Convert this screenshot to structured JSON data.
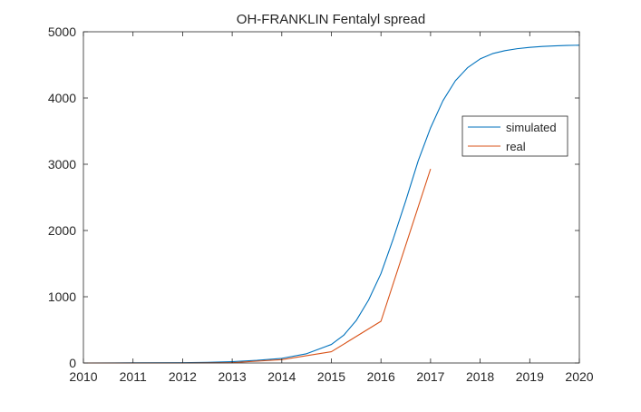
{
  "chart_data": {
    "type": "line",
    "title": "OH-FRANKLIN Fentalyl spread",
    "xlabel": "",
    "ylabel": "",
    "xlim": [
      2010,
      2020
    ],
    "ylim": [
      0,
      5000
    ],
    "xticks": [
      2010,
      2011,
      2012,
      2013,
      2014,
      2015,
      2016,
      2017,
      2018,
      2019,
      2020
    ],
    "yticks": [
      0,
      1000,
      2000,
      3000,
      4000,
      5000
    ],
    "grid": false,
    "legend": {
      "position": "top-right",
      "entries": [
        "simulated",
        "real"
      ]
    },
    "series": [
      {
        "name": "simulated",
        "color": "#0072BD",
        "x": [
          2010,
          2011,
          2012,
          2012.5,
          2013,
          2013.5,
          2014,
          2014.5,
          2015,
          2015.25,
          2015.5,
          2015.75,
          2016,
          2016.25,
          2016.5,
          2016.75,
          2017,
          2017.25,
          2017.5,
          2017.75,
          2018,
          2018.25,
          2018.5,
          2018.75,
          2019,
          2019.25,
          2019.5,
          2019.75,
          2020
        ],
        "y": [
          0,
          2,
          5,
          10,
          20,
          40,
          70,
          140,
          280,
          420,
          640,
          950,
          1350,
          1880,
          2450,
          3050,
          3550,
          3960,
          4260,
          4460,
          4590,
          4670,
          4715,
          4745,
          4765,
          4778,
          4787,
          4793,
          4797
        ]
      },
      {
        "name": "real",
        "color": "#D95319",
        "x": [
          2010,
          2011,
          2012,
          2013,
          2014,
          2015,
          2016,
          2017
        ],
        "y": [
          0,
          0,
          0,
          5,
          50,
          170,
          630,
          2930
        ]
      }
    ]
  }
}
